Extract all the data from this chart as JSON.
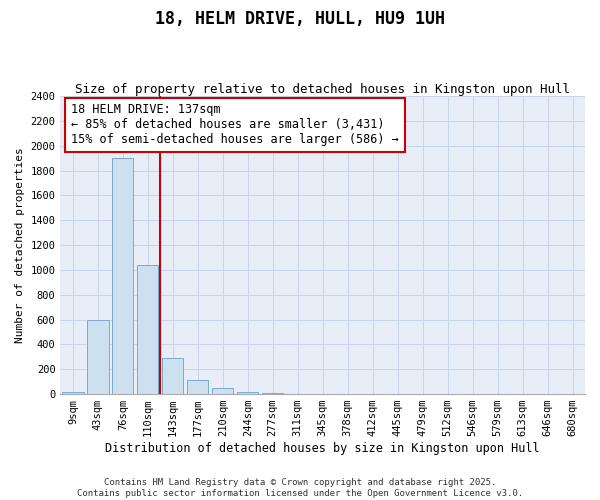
{
  "title": "18, HELM DRIVE, HULL, HU9 1UH",
  "subtitle": "Size of property relative to detached houses in Kingston upon Hull",
  "xlabel": "Distribution of detached houses by size in Kingston upon Hull",
  "ylabel": "Number of detached properties",
  "categories": [
    "9sqm",
    "43sqm",
    "76sqm",
    "110sqm",
    "143sqm",
    "177sqm",
    "210sqm",
    "244sqm",
    "277sqm",
    "311sqm",
    "345sqm",
    "378sqm",
    "412sqm",
    "445sqm",
    "479sqm",
    "512sqm",
    "546sqm",
    "579sqm",
    "613sqm",
    "646sqm",
    "680sqm"
  ],
  "values": [
    20,
    600,
    1900,
    1040,
    290,
    110,
    45,
    20,
    5,
    0,
    0,
    0,
    0,
    0,
    0,
    0,
    0,
    0,
    0,
    0,
    0
  ],
  "bar_color": "#cce0f0",
  "bar_edge_color": "#7aaacf",
  "grid_color": "#c8d4e8",
  "background_color": "#e8eef8",
  "vline_color": "#cc0000",
  "annotation_text": "18 HELM DRIVE: 137sqm\n← 85% of detached houses are smaller (3,431)\n15% of semi-detached houses are larger (586) →",
  "annotation_box_color": "#cc0000",
  "ylim": [
    0,
    2400
  ],
  "yticks": [
    0,
    200,
    400,
    600,
    800,
    1000,
    1200,
    1400,
    1600,
    1800,
    2000,
    2200,
    2400
  ],
  "footer": "Contains HM Land Registry data © Crown copyright and database right 2025.\nContains public sector information licensed under the Open Government Licence v3.0.",
  "title_fontsize": 12,
  "subtitle_fontsize": 9,
  "xlabel_fontsize": 8.5,
  "ylabel_fontsize": 8,
  "tick_fontsize": 7.5,
  "annotation_fontsize": 8.5,
  "footer_fontsize": 6.5
}
